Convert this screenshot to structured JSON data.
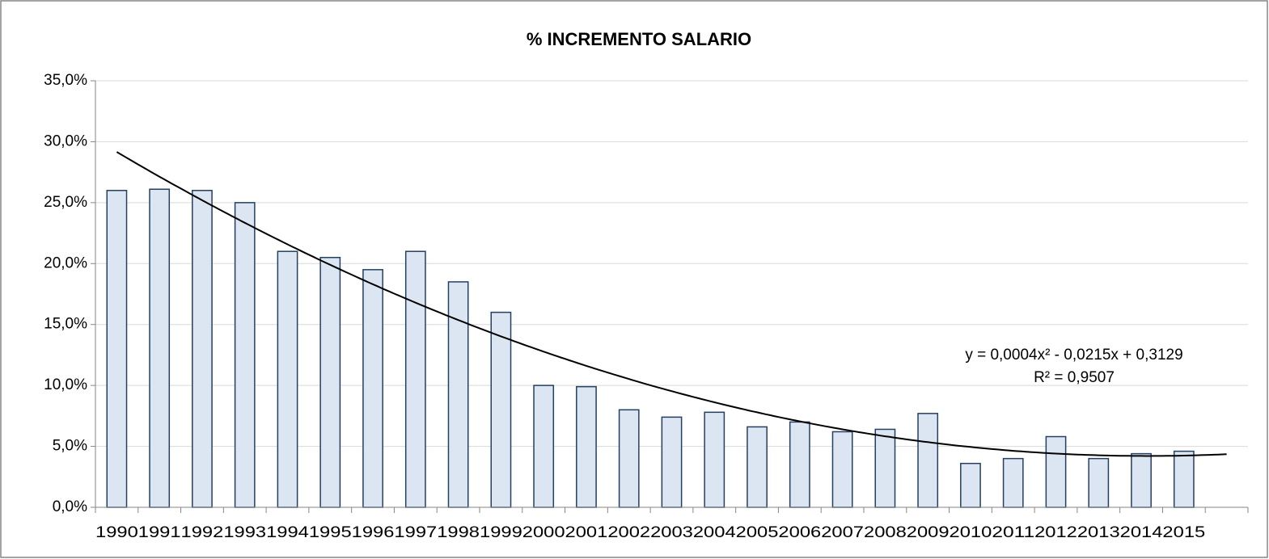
{
  "chart_data": {
    "type": "bar",
    "title": "% INCREMENTO SALARIO",
    "categories": [
      "1990",
      "1991",
      "1992",
      "1993",
      "1994",
      "1995",
      "1996",
      "1997",
      "1998",
      "1999",
      "2000",
      "2001",
      "2002",
      "2003",
      "2004",
      "2005",
      "2006",
      "2007",
      "2008",
      "2009",
      "2010",
      "2011",
      "2012",
      "2013",
      "2014",
      "2015",
      null
    ],
    "values": [
      26.0,
      26.1,
      26.0,
      25.0,
      21.0,
      20.5,
      19.5,
      21.0,
      18.5,
      16.0,
      10.0,
      9.9,
      8.0,
      7.4,
      7.8,
      6.6,
      7.0,
      6.2,
      6.4,
      7.7,
      3.6,
      4.0,
      5.8,
      4.0,
      4.4,
      4.6,
      null
    ],
    "color": "#dce6f2",
    "edge_color": "#243f60",
    "ylim": [
      0,
      35
    ],
    "yticks": [
      {
        "value": 0,
        "label": "0,0%"
      },
      {
        "value": 5,
        "label": "5,0%"
      },
      {
        "value": 10,
        "label": "10,0%"
      },
      {
        "value": 15,
        "label": "15,0%"
      },
      {
        "value": 20,
        "label": "20,0%"
      },
      {
        "value": 25,
        "label": "25,0%"
      },
      {
        "value": 30,
        "label": "30,0%"
      },
      {
        "value": 35,
        "label": "35,0%"
      }
    ],
    "grid": true,
    "trendline": {
      "type": "polynomial",
      "order": 2,
      "color": "#000000"
    },
    "annotations": [
      "y = 0,0004x² - 0,0215x + 0,3129",
      "R² = 0,9507"
    ]
  }
}
